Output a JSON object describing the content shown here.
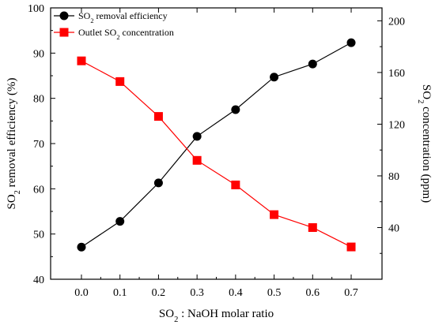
{
  "chart_data": {
    "type": "line",
    "x": [
      0.0,
      0.1,
      0.2,
      0.3,
      0.4,
      0.5,
      0.6,
      0.7
    ],
    "x_tick_labels": [
      "0.0",
      "0.1",
      "0.2",
      "0.3",
      "0.4",
      "0.5",
      "0.6",
      "0.7"
    ],
    "xlim": [
      -0.08,
      0.78
    ],
    "left_axis": {
      "ylim": [
        40,
        100
      ],
      "ticks": [
        40,
        50,
        60,
        70,
        80,
        90,
        100
      ]
    },
    "right_axis": {
      "ylim": [
        0,
        210
      ],
      "ticks": [
        40,
        80,
        120,
        160,
        200
      ]
    },
    "xlabel": {
      "pre": "SO",
      "sub": "2",
      "post": " : NaOH molar ratio"
    },
    "ylabel_left": {
      "pre": "SO",
      "sub": "2",
      "post": " removal efficiency (%)"
    },
    "ylabel_right": {
      "pre": "SO",
      "sub": "2",
      "post": " concentration (ppm)"
    },
    "series": [
      {
        "name": {
          "pre": "SO",
          "sub": "2",
          "post": " removal efficiency"
        },
        "axis": "left",
        "color": "#000000",
        "marker": "circle",
        "values": [
          47.1,
          52.8,
          61.3,
          71.6,
          77.5,
          84.7,
          87.6,
          92.3
        ]
      },
      {
        "name": {
          "pre": "Outlet SO",
          "sub": "2",
          "post": " concentration"
        },
        "axis": "right",
        "color": "#ff0000",
        "marker": "square",
        "values": [
          169,
          153,
          126,
          92,
          73,
          50,
          40,
          25
        ]
      }
    ],
    "legend": "top-left",
    "grid": false
  }
}
